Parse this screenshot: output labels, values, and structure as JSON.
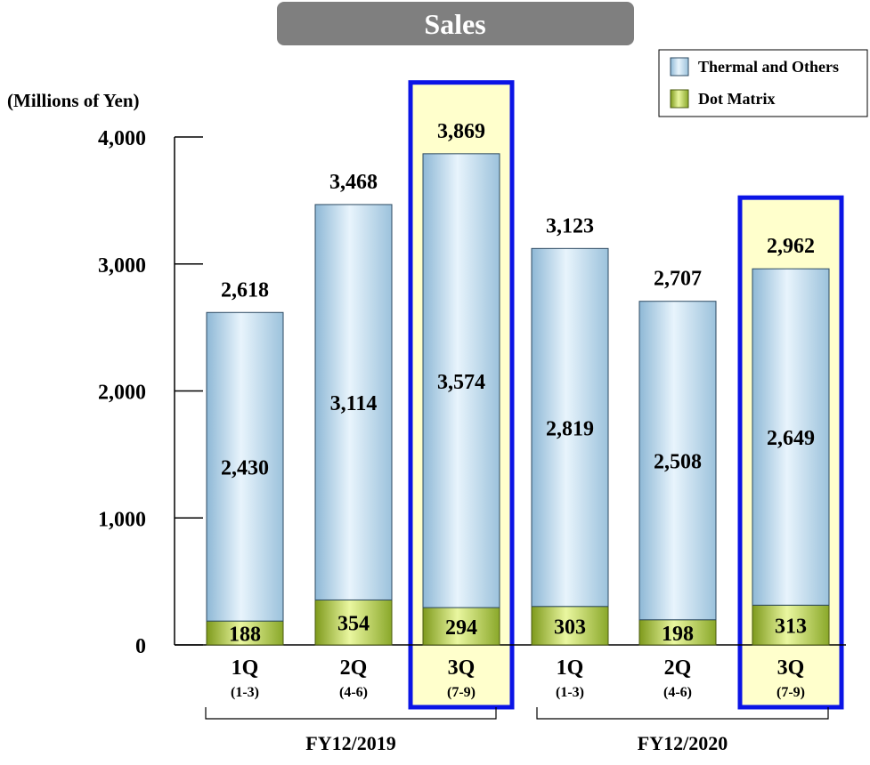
{
  "chart_data": {
    "type": "bar",
    "stacked": true,
    "title": "Sales",
    "ylabel": "(Millions of Yen)",
    "ylim": [
      0,
      4000
    ],
    "yticks": [
      "0",
      "1,000",
      "2,000",
      "3,000",
      "4,000"
    ],
    "yticks_values": [
      0,
      1000,
      2000,
      3000,
      4000
    ],
    "grid": false,
    "legend_placement": "top-right",
    "categories": [
      {
        "quarter": "1Q",
        "range": "(1-3)"
      },
      {
        "quarter": "2Q",
        "range": "(4-6)"
      },
      {
        "quarter": "3Q",
        "range": "(7-9)"
      },
      {
        "quarter": "1Q",
        "range": "(1-3)"
      },
      {
        "quarter": "2Q",
        "range": "(4-6)"
      },
      {
        "quarter": "3Q",
        "range": "(7-9)"
      }
    ],
    "groups": [
      {
        "label": "FY12/2019",
        "categories": [
          0,
          1,
          2
        ]
      },
      {
        "label": "FY12/2020",
        "categories": [
          3,
          4,
          5
        ]
      }
    ],
    "highlighted": [
      2,
      5
    ],
    "series": [
      {
        "name": "Dot Matrix",
        "values": [
          188,
          354,
          294,
          303,
          198,
          313
        ],
        "labels": [
          "188",
          "354",
          "294",
          "303",
          "198",
          "313"
        ]
      },
      {
        "name": "Thermal and Others",
        "values": [
          2430,
          3114,
          3574,
          2819,
          2508,
          2649
        ],
        "labels": [
          "2,430",
          "3,114",
          "3,574",
          "2,819",
          "2,508",
          "2,649"
        ]
      }
    ],
    "totals": [
      2618,
      3468,
      3869,
      3123,
      2707,
      2962
    ],
    "total_labels": [
      "2,618",
      "3,468",
      "3,869",
      "3,123",
      "2,707",
      "2,962"
    ],
    "colors": {
      "thermal_light": "#e8f4fc",
      "thermal_dark": "#8eb8d6",
      "dot_light": "#eaf7a0",
      "dot_dark": "#7e9a1c",
      "highlight_fill": "#ffffcc",
      "highlight_border": "#0b14e6",
      "title_bg": "#7f7f7f"
    }
  }
}
